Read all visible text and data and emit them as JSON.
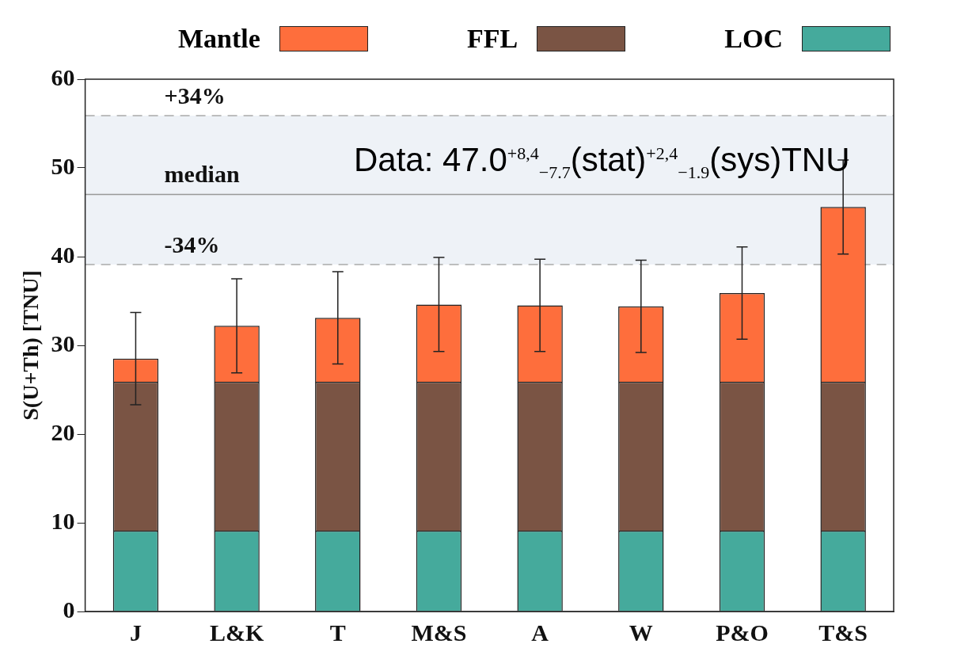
{
  "chart_data": {
    "type": "bar",
    "stacked": true,
    "categories": [
      "J",
      "L&K",
      "T",
      "M&S",
      "A",
      "W",
      "P&O",
      "T&S"
    ],
    "ylabel": "S(U+Th) [TNU]",
    "ylim": [
      0,
      60
    ],
    "yticks": [
      0,
      10,
      20,
      30,
      40,
      50,
      60
    ],
    "series": [
      {
        "name": "LOC",
        "color": "#45aa9c",
        "values": [
          9.1,
          9.1,
          9.1,
          9.1,
          9.1,
          9.1,
          9.1,
          9.1
        ]
      },
      {
        "name": "FFL",
        "color": "#7a5444",
        "values": [
          16.8,
          16.8,
          16.8,
          16.8,
          16.8,
          16.8,
          16.8,
          16.8
        ]
      },
      {
        "name": "Mantle",
        "color": "#fe6e3c",
        "values": [
          2.6,
          6.3,
          7.2,
          8.7,
          8.6,
          8.5,
          10.0,
          19.7
        ],
        "errors": [
          5.2,
          5.3,
          5.2,
          5.3,
          5.2,
          5.2,
          5.2,
          5.3
        ]
      }
    ],
    "bands": [
      {
        "axis": "y",
        "from": 39.1,
        "to": 55.9,
        "color": "#eef2f7"
      }
    ],
    "ref_lines": [
      {
        "axis": "y",
        "value": 55.9,
        "color": "#aaaaaa",
        "line_style": "dashed"
      },
      {
        "axis": "y",
        "value": 47.0,
        "label": "median",
        "color": "#999999",
        "line_style": "solid"
      },
      {
        "axis": "y",
        "value": 39.1,
        "color": "#aaaaaa",
        "line_style": "dashed"
      }
    ],
    "annotations": [
      {
        "text": "+34%",
        "y": 55.9
      },
      {
        "text": "-34%",
        "y": 39.1
      },
      "Data: 47.0$^{+8,4}$$_{−7.7}$(stat)$^{+2,4}$$_{−1.9}$(sys)TNU"
    ],
    "legend": "top",
    "grid": false
  }
}
